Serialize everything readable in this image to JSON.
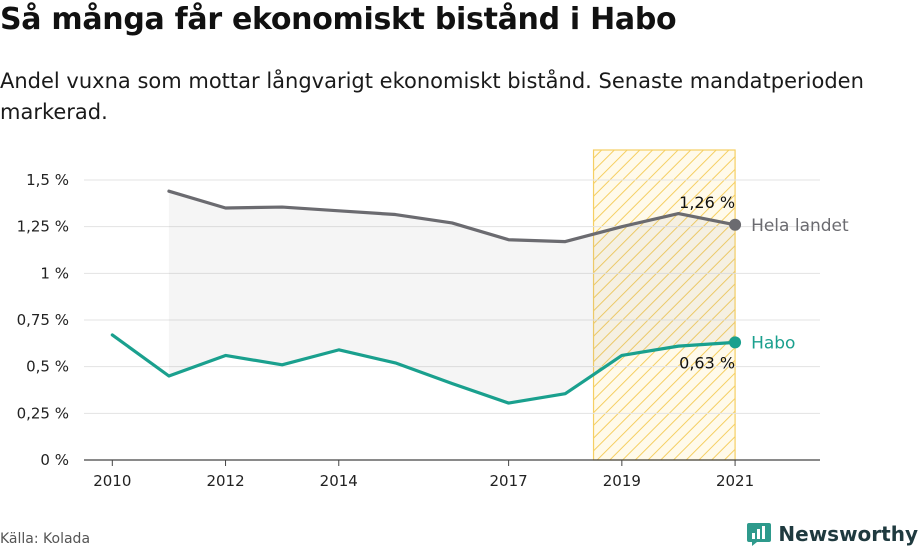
{
  "title": "Så många får ekonomiskt bistånd i Habo",
  "subtitle": "Andel vuxna som mottar långvarigt ekonomiskt bistånd. Senaste mandatperioden markerad.",
  "source": "Källa: Kolada",
  "brand": {
    "name": "Newsworthy",
    "icon": "newsworthy-logo-icon",
    "color": "#2e9a8c"
  },
  "chart_data": {
    "type": "line",
    "x_ticks": [
      2010,
      2012,
      2014,
      2017,
      2019,
      2021
    ],
    "x_range": [
      2009.5,
      2022.5
    ],
    "y_ticks": [
      {
        "value": 0,
        "label": "0 %"
      },
      {
        "value": 0.25,
        "label": "0,25 %"
      },
      {
        "value": 0.5,
        "label": "0,5 %"
      },
      {
        "value": 0.75,
        "label": "0,75 %"
      },
      {
        "value": 1.0,
        "label": "1 %"
      },
      {
        "value": 1.25,
        "label": "1,25 %"
      },
      {
        "value": 1.5,
        "label": "1,5 %"
      }
    ],
    "ylim": [
      0,
      1.5
    ],
    "grid": true,
    "highlight": {
      "from": 2018.5,
      "to": 2021,
      "color": "#f5cf63"
    },
    "series": [
      {
        "name": "Hela landet",
        "color": "#6b6b70",
        "x": [
          2011,
          2012,
          2013,
          2014,
          2015,
          2016,
          2017,
          2018,
          2019,
          2020,
          2021
        ],
        "values": [
          1.44,
          1.35,
          1.355,
          1.335,
          1.315,
          1.27,
          1.18,
          1.17,
          1.25,
          1.32,
          1.26
        ],
        "end_label": "1,26 %"
      },
      {
        "name": "Habo",
        "color": "#1aa08e",
        "x": [
          2010,
          2011,
          2012,
          2013,
          2014,
          2015,
          2016,
          2017,
          2018,
          2019,
          2020,
          2021
        ],
        "values": [
          0.67,
          0.45,
          0.56,
          0.51,
          0.59,
          0.52,
          0.41,
          0.305,
          0.355,
          0.56,
          0.61,
          0.63
        ],
        "end_label": "0,63 %"
      }
    ]
  }
}
